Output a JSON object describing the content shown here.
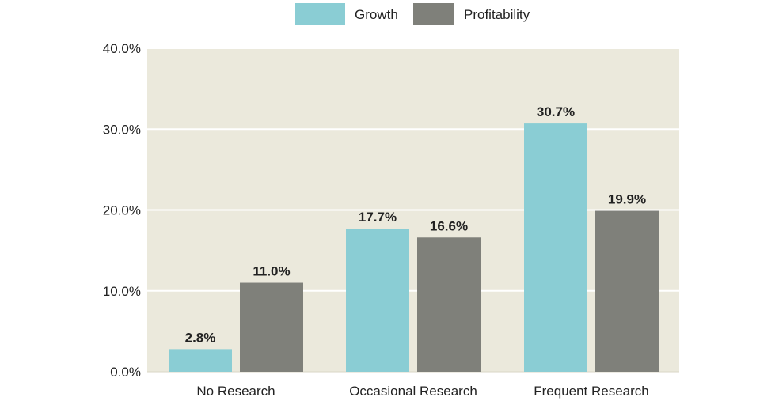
{
  "chart_data": {
    "type": "bar",
    "title": "",
    "xlabel": "",
    "ylabel": "",
    "categories": [
      "No Research",
      "Occasional Research",
      "Frequent Research"
    ],
    "series": [
      {
        "name": "Growth",
        "values": [
          2.8,
          17.7,
          30.7
        ],
        "labels": [
          "2.8%",
          "17.7%",
          "30.7%"
        ]
      },
      {
        "name": "Profitability",
        "values": [
          11.0,
          16.6,
          19.9
        ],
        "labels": [
          "11.0%",
          "16.6%",
          "19.9%"
        ]
      }
    ],
    "ylim": [
      0,
      40
    ],
    "yticks": [
      0,
      10,
      20,
      30,
      40
    ],
    "ytick_labels": [
      "0.0%",
      "10.0%",
      "20.0%",
      "30.0%",
      "40.0%"
    ],
    "grid": true,
    "legend_position": "top-center",
    "colors": {
      "Growth": "#8acdd4",
      "Profitability": "#7f807a",
      "plot_background": "#ebe9dc",
      "gridline": "#ffffff"
    }
  }
}
